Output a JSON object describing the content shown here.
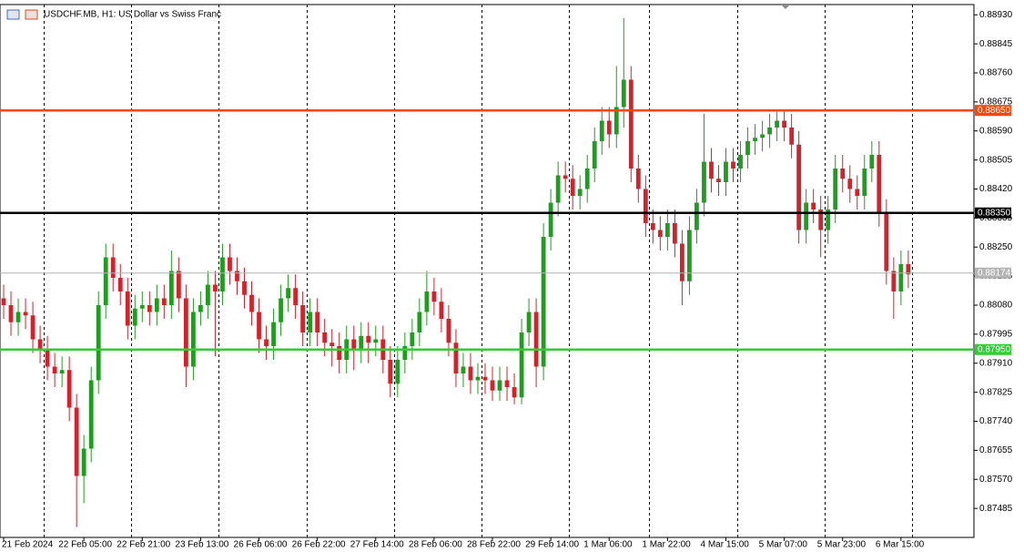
{
  "chart_data": {
    "type": "candlestick",
    "title": "USDCHF.MB, H1:  US Dollar vs Swiss Franc",
    "up_color": "#1e9e1e",
    "down_color": "#d8202a",
    "ylim": [
      0.874,
      0.8896
    ],
    "xlim": [
      -0.5,
      133
    ],
    "yticks": [
      {
        "value": 0.8893,
        "label": "0.88930"
      },
      {
        "value": 0.88845,
        "label": "0.88845"
      },
      {
        "value": 0.8876,
        "label": "0.88760"
      },
      {
        "value": 0.88675,
        "label": "0.88675"
      },
      {
        "value": 0.8859,
        "label": "0.88590"
      },
      {
        "value": 0.88505,
        "label": "0.88505"
      },
      {
        "value": 0.8842,
        "label": "0.88420"
      },
      {
        "value": 0.88335,
        "label": "0.88335"
      },
      {
        "value": 0.8825,
        "label": "0.88250"
      },
      {
        "value": 0.88165,
        "label": "0.88165"
      },
      {
        "value": 0.8808,
        "label": "0.88080"
      },
      {
        "value": 0.87995,
        "label": "0.87995"
      },
      {
        "value": 0.8791,
        "label": "0.87910"
      },
      {
        "value": 0.87825,
        "label": "0.87825"
      },
      {
        "value": 0.8774,
        "label": "0.87740"
      },
      {
        "value": 0.87655,
        "label": "0.87655"
      },
      {
        "value": 0.8757,
        "label": "0.87570"
      },
      {
        "value": 0.87485,
        "label": "0.87485"
      }
    ],
    "xticks": [
      {
        "value": 0,
        "label": "21 Feb 2024"
      },
      {
        "value": 11,
        "label": "22 Feb 05:00"
      },
      {
        "value": 19,
        "label": "22 Feb 21:00"
      },
      {
        "value": 27,
        "label": "23 Feb 13:00"
      },
      {
        "value": 35,
        "label": "26 Feb 06:00"
      },
      {
        "value": 43,
        "label": "26 Feb 22:00"
      },
      {
        "value": 51,
        "label": "27 Feb 14:00"
      },
      {
        "value": 59,
        "label": "28 Feb 06:00"
      },
      {
        "value": 67,
        "label": "28 Feb 22:00"
      },
      {
        "value": 75,
        "label": "29 Feb 14:00"
      },
      {
        "value": 83,
        "label": "1 Mar 06:00"
      },
      {
        "value": 91,
        "label": "1 Mar 22:00"
      },
      {
        "value": 99,
        "label": "4 Mar 15:00"
      },
      {
        "value": 107,
        "label": "5 Mar 07:00"
      },
      {
        "value": 115,
        "label": "5 Mar 23:00"
      },
      {
        "value": 123,
        "label": "6 Mar 15:00"
      }
    ],
    "xgrid": [
      5.5,
      17.5,
      29.5,
      41.5,
      53.5,
      65.5,
      77.5,
      88.5,
      100.5,
      112.5,
      124.5
    ],
    "levels": [
      {
        "value": 0.8865,
        "label": "0.88650",
        "color": "#ff4500"
      },
      {
        "value": 0.8835,
        "label": "0.88350",
        "color": "#000000"
      },
      {
        "value": 0.8795,
        "label": "0.87950",
        "color": "#32cd32"
      },
      {
        "value": 0.88174,
        "label": "0.88174",
        "color": "#b4b4b4"
      }
    ],
    "open": [
      0.881,
      0.8808,
      0.8803,
      0.8806,
      0.8805,
      0.8798,
      0.8795,
      0.879,
      0.8788,
      0.8789,
      0.8778,
      0.8758,
      0.8766,
      0.8786,
      0.8808,
      0.8822,
      0.8816,
      0.8812,
      0.8802,
      0.8807,
      0.8808,
      0.8806,
      0.881,
      0.8808,
      0.8818,
      0.881,
      0.879,
      0.8806,
      0.8808,
      0.8814,
      0.8812,
      0.8822,
      0.8818,
      0.8815,
      0.8811,
      0.8806,
      0.8798,
      0.8796,
      0.8803,
      0.881,
      0.8813,
      0.8808,
      0.88,
      0.8806,
      0.88,
      0.8797,
      0.8796,
      0.8792,
      0.8798,
      0.8795,
      0.8799,
      0.8797,
      0.8798,
      0.8792,
      0.8785,
      0.8792,
      0.8796,
      0.88,
      0.8806,
      0.8812,
      0.8809,
      0.8804,
      0.8797,
      0.8788,
      0.879,
      0.8786,
      0.8787,
      0.8786,
      0.8783,
      0.8786,
      0.8784,
      0.8781,
      0.88,
      0.8806,
      0.879,
      0.8828,
      0.8838,
      0.8846,
      0.8845,
      0.884,
      0.8842,
      0.8848,
      0.8856,
      0.8862,
      0.8858,
      0.8866,
      0.8874,
      0.8848,
      0.8842,
      0.8832,
      0.883,
      0.8828,
      0.8832,
      0.8826,
      0.8815,
      0.883,
      0.8838,
      0.885,
      0.8845,
      0.8844,
      0.885,
      0.8848,
      0.8852,
      0.8856,
      0.8857,
      0.8858,
      0.886,
      0.8862,
      0.886,
      0.8855,
      0.883,
      0.8838,
      0.8836,
      0.883,
      0.8836,
      0.8848,
      0.8845,
      0.8842,
      0.884,
      0.8848,
      0.8852,
      0.8835,
      0.8818,
      0.8812,
      0.882
    ],
    "high": [
      0.8814,
      0.8812,
      0.881,
      0.881,
      0.8809,
      0.8802,
      0.8799,
      0.8794,
      0.8793,
      0.8793,
      0.8782,
      0.877,
      0.879,
      0.8812,
      0.8826,
      0.8826,
      0.882,
      0.8816,
      0.8811,
      0.8812,
      0.8812,
      0.8814,
      0.8814,
      0.8824,
      0.8822,
      0.8814,
      0.881,
      0.8812,
      0.8818,
      0.8818,
      0.8826,
      0.8826,
      0.8822,
      0.8819,
      0.8815,
      0.881,
      0.8802,
      0.8807,
      0.8814,
      0.8817,
      0.8817,
      0.8812,
      0.881,
      0.881,
      0.8804,
      0.8801,
      0.88,
      0.8802,
      0.8802,
      0.8803,
      0.8803,
      0.8802,
      0.8802,
      0.8796,
      0.8796,
      0.88,
      0.8804,
      0.881,
      0.8818,
      0.8816,
      0.8813,
      0.8808,
      0.8801,
      0.8794,
      0.8794,
      0.8791,
      0.8791,
      0.879,
      0.879,
      0.879,
      0.8788,
      0.8804,
      0.881,
      0.881,
      0.8832,
      0.8842,
      0.885,
      0.885,
      0.8849,
      0.8846,
      0.8852,
      0.886,
      0.8866,
      0.8866,
      0.8878,
      0.8892,
      0.8878,
      0.8852,
      0.8846,
      0.8836,
      0.8834,
      0.8836,
      0.8836,
      0.883,
      0.8834,
      0.8842,
      0.8864,
      0.8854,
      0.8849,
      0.8854,
      0.8854,
      0.8856,
      0.886,
      0.8861,
      0.8862,
      0.8864,
      0.8865,
      0.8865,
      0.8864,
      0.8859,
      0.8842,
      0.8842,
      0.884,
      0.884,
      0.8852,
      0.8852,
      0.8849,
      0.8846,
      0.8852,
      0.8856,
      0.8856,
      0.8839,
      0.8822,
      0.8824,
      0.8824
    ],
    "low": [
      0.8804,
      0.8799,
      0.8799,
      0.8801,
      0.8794,
      0.8791,
      0.8786,
      0.8784,
      0.8784,
      0.8774,
      0.8743,
      0.875,
      0.8762,
      0.8782,
      0.8804,
      0.8812,
      0.8808,
      0.8798,
      0.8798,
      0.8803,
      0.8802,
      0.8802,
      0.8804,
      0.8804,
      0.8806,
      0.8784,
      0.8786,
      0.8802,
      0.8804,
      0.8793,
      0.8808,
      0.8814,
      0.8811,
      0.8807,
      0.8802,
      0.8794,
      0.8792,
      0.8792,
      0.8799,
      0.8806,
      0.8804,
      0.8796,
      0.8796,
      0.8796,
      0.8793,
      0.879,
      0.8788,
      0.8788,
      0.8789,
      0.8791,
      0.8791,
      0.8793,
      0.8788,
      0.8781,
      0.8781,
      0.8788,
      0.8792,
      0.8796,
      0.8802,
      0.8805,
      0.88,
      0.8793,
      0.8784,
      0.8784,
      0.8782,
      0.8782,
      0.8782,
      0.878,
      0.878,
      0.878,
      0.8779,
      0.8779,
      0.8796,
      0.8784,
      0.8786,
      0.8824,
      0.8834,
      0.8841,
      0.8836,
      0.8836,
      0.8838,
      0.8844,
      0.8852,
      0.8854,
      0.8854,
      0.886,
      0.8844,
      0.8838,
      0.8828,
      0.8826,
      0.8824,
      0.8824,
      0.8822,
      0.8808,
      0.8811,
      0.8826,
      0.8834,
      0.8841,
      0.884,
      0.884,
      0.8844,
      0.8844,
      0.8848,
      0.8852,
      0.8853,
      0.8854,
      0.8856,
      0.8856,
      0.8851,
      0.8826,
      0.8826,
      0.8832,
      0.8822,
      0.8826,
      0.8832,
      0.8841,
      0.8838,
      0.8836,
      0.8836,
      0.8844,
      0.8831,
      0.8814,
      0.8804,
      0.8808,
      0.8813
    ],
    "close": [
      0.8808,
      0.8803,
      0.8806,
      0.8805,
      0.8798,
      0.8795,
      0.879,
      0.8788,
      0.8789,
      0.8778,
      0.8758,
      0.8766,
      0.8786,
      0.8808,
      0.8822,
      0.8816,
      0.8812,
      0.8802,
      0.8807,
      0.8808,
      0.8806,
      0.881,
      0.8808,
      0.8818,
      0.881,
      0.879,
      0.8806,
      0.8808,
      0.8814,
      0.8812,
      0.8822,
      0.8818,
      0.8815,
      0.8811,
      0.8806,
      0.8798,
      0.8796,
      0.8803,
      0.881,
      0.8813,
      0.8808,
      0.88,
      0.8806,
      0.88,
      0.8797,
      0.8796,
      0.8792,
      0.8798,
      0.8795,
      0.8799,
      0.8797,
      0.8798,
      0.8792,
      0.8785,
      0.8792,
      0.8796,
      0.88,
      0.8806,
      0.8812,
      0.8809,
      0.8804,
      0.8797,
      0.8788,
      0.879,
      0.8786,
      0.8787,
      0.8786,
      0.8783,
      0.8786,
      0.8784,
      0.8781,
      0.88,
      0.8806,
      0.879,
      0.8828,
      0.8838,
      0.8846,
      0.8845,
      0.884,
      0.8842,
      0.8848,
      0.8856,
      0.8862,
      0.8858,
      0.8866,
      0.8874,
      0.8848,
      0.8842,
      0.8832,
      0.883,
      0.8828,
      0.8832,
      0.8826,
      0.8815,
      0.883,
      0.8838,
      0.885,
      0.8845,
      0.8844,
      0.885,
      0.8848,
      0.8852,
      0.8856,
      0.8857,
      0.8858,
      0.886,
      0.8862,
      0.886,
      0.8855,
      0.883,
      0.8838,
      0.8836,
      0.883,
      0.8836,
      0.8848,
      0.8845,
      0.8842,
      0.884,
      0.8848,
      0.8852,
      0.8835,
      0.8818,
      0.8812,
      0.882,
      0.8817
    ]
  }
}
